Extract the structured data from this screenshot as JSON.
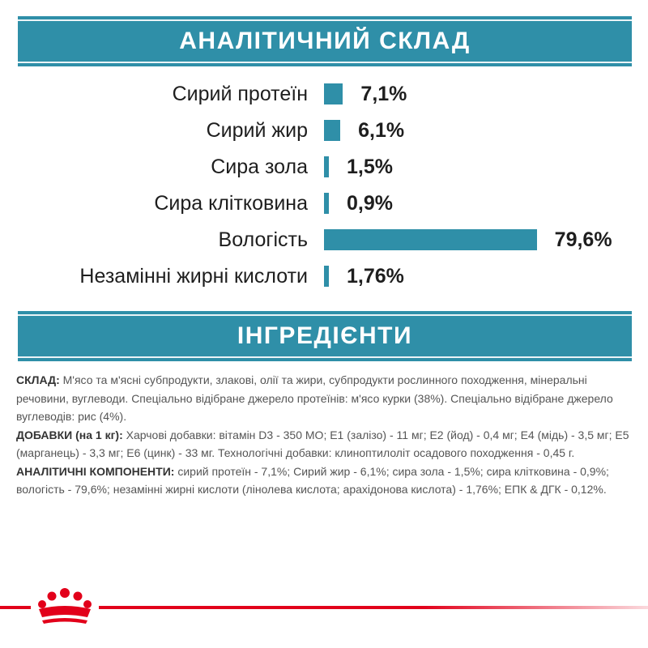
{
  "sections": {
    "analysis_title": "АНАЛІТИЧНИЙ СКЛАД",
    "ingredients_title": "ІНГРЕДІЄНТИ"
  },
  "chart_data": {
    "type": "bar",
    "orientation": "horizontal",
    "categories": [
      "Сирий протеїн",
      "Сирий жир",
      "Сира зола",
      "Сира клітковина",
      "Вологість",
      "Незамінні жирні кислоти"
    ],
    "values": [
      7.1,
      6.1,
      1.5,
      0.9,
      79.6,
      1.76
    ],
    "value_labels": [
      "7,1%",
      "6,1%",
      "1,5%",
      "0,9%",
      "79,6%",
      "1,76%"
    ],
    "unit": "%",
    "xlim": [
      0,
      80
    ],
    "bar_color": "#2f8fa8",
    "title": "",
    "xlabel": "",
    "ylabel": ""
  },
  "ingredients": {
    "composition_label": "СКЛАД:",
    "composition_text": " М'ясо та м'ясні субпродукти, злакові, олії та жири, субпродукти рослинного походження, мінеральні речовини, вуглеводи. Спеціально відібране джерело протеїнів: м'ясо курки (38%). Спеціально відібране джерело вуглеводів: рис (4%).",
    "additives_label": "ДОБАВКИ (на 1 кг):",
    "additives_text": " Харчові добавки: вітамін D3 - 350 МО; Е1 (залізо) - 11 мг; Е2 (йод) - 0,4 мг; Е4 (мідь) - 3,5 мг; Е5 (марганець) - 3,3 мг; Е6 (цинк) - 33 мг. Технологічні добавки: клиноптилоліт осадового походження - 0,45 г.",
    "components_label": "АНАЛІТИЧНІ КОМПОНЕНТИ:",
    "components_text": " сирий протеїн - 7,1%; Сирий жир - 6,1%; сира зола - 1,5%; сира клітковина - 0,9%; вологість - 79,6%; незамінні жирні кислоти (лінолева кислота; арахідонова кислота) - 1,76%;  ЕПК & ДГК - 0,12%."
  },
  "brand": {
    "logo_icon": "royal-canin-crown-icon",
    "accent_color": "#e2001a",
    "band_color": "#2f8fa8"
  }
}
